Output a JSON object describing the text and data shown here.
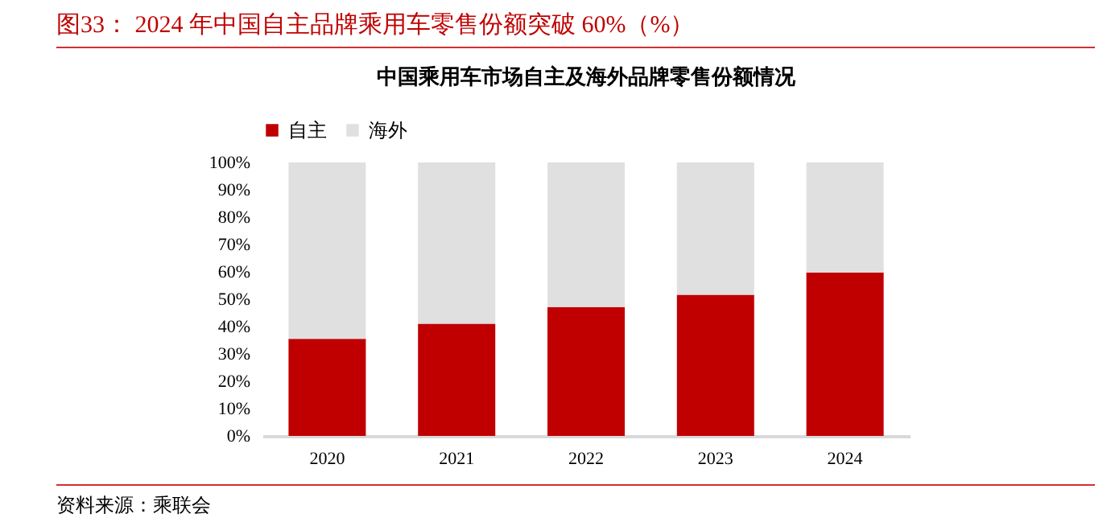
{
  "chart_data": {
    "type": "bar",
    "title": "图33：  2024 年中国自主品牌乘用车零售份额突破 60%（%）",
    "subtitle": "中国乘用车市场自主及海外品牌零售份额情况",
    "categories": [
      "2020",
      "2021",
      "2022",
      "2023",
      "2024"
    ],
    "series": [
      {
        "name": "自主",
        "color": "#c00000",
        "values": [
          35.5,
          41.0,
          47.1,
          51.6,
          59.8
        ]
      },
      {
        "name": "海外",
        "color": "#e0e0e0",
        "values": [
          64.5,
          59.0,
          52.9,
          48.4,
          40.2
        ]
      }
    ],
    "stacked": true,
    "ylim": [
      0,
      100
    ],
    "yticks": [
      {
        "value": 0,
        "label": "0%"
      },
      {
        "value": 10,
        "label": "10%"
      },
      {
        "value": 20,
        "label": "20%"
      },
      {
        "value": 30,
        "label": "30%"
      },
      {
        "value": 40,
        "label": "40%"
      },
      {
        "value": 50,
        "label": "50%"
      },
      {
        "value": 60,
        "label": "60%"
      },
      {
        "value": 70,
        "label": "70%"
      },
      {
        "value": 80,
        "label": "80%"
      },
      {
        "value": 90,
        "label": "90%"
      },
      {
        "value": 100,
        "label": "100%"
      }
    ],
    "grid": false,
    "legend": "top",
    "annotations": [
      "资料来源：乘联会"
    ]
  }
}
